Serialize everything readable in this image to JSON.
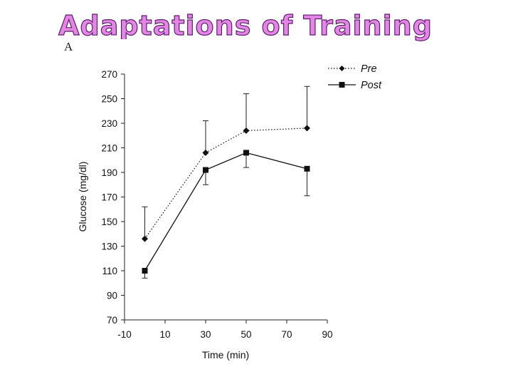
{
  "slide": {
    "title": "Adaptations of Training",
    "panel_letter": "A"
  },
  "chart_data": {
    "type": "line",
    "xlabel": "Time (min)",
    "ylabel": "Glucose (mg/dl)",
    "xlim": [
      -10,
      90
    ],
    "ylim": [
      70,
      270
    ],
    "x_ticks": [
      -10,
      10,
      30,
      50,
      70,
      90
    ],
    "y_ticks": [
      70,
      90,
      110,
      130,
      150,
      170,
      190,
      210,
      230,
      250,
      270
    ],
    "grid": false,
    "legend_position": "top-right",
    "series": [
      {
        "name": "Pre",
        "line_style": "dotted",
        "marker": "diamond",
        "x": [
          0,
          30,
          50,
          80
        ],
        "y": [
          136,
          206,
          224,
          226
        ],
        "error": [
          26,
          26,
          30,
          34
        ]
      },
      {
        "name": "Post",
        "line_style": "solid",
        "marker": "square",
        "x": [
          0,
          30,
          50,
          80
        ],
        "y": [
          110,
          192,
          206,
          193
        ],
        "error": [
          6,
          12,
          12,
          22
        ]
      }
    ]
  }
}
